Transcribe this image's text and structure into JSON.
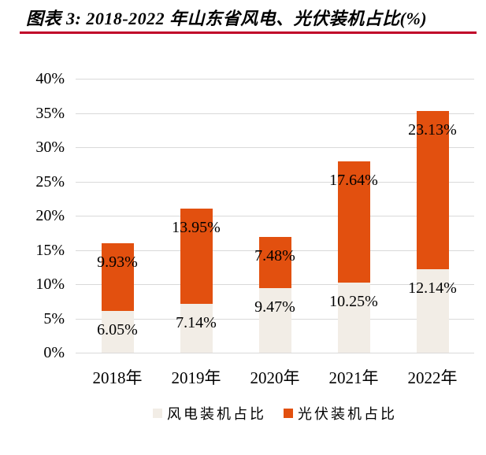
{
  "header": {
    "title": "图表 3: 2018-2022 年山东省风电、光伏装机占比(%)",
    "underline_color": "#C00028"
  },
  "chart_data": {
    "type": "bar",
    "stacked": true,
    "title": "2018-2022 年山东省风电、光伏装机占比(%)",
    "categories": [
      "2018年",
      "2019年",
      "2020年",
      "2021年",
      "2022年"
    ],
    "series": [
      {
        "name": "风电装机占比",
        "color": "#F2EDE6",
        "values": [
          6.05,
          7.14,
          9.47,
          10.25,
          12.14
        ],
        "labels": [
          "6.05%",
          "7.14%",
          "9.47%",
          "10.25%",
          "12.14%"
        ]
      },
      {
        "name": "光伏装机占比",
        "color": "#E2500F",
        "values": [
          9.93,
          13.95,
          7.48,
          17.64,
          23.13
        ],
        "labels": [
          "9.93%",
          "13.95%",
          "7.48%",
          "17.64%",
          "23.13%"
        ]
      }
    ],
    "xlabel": "",
    "ylabel": "",
    "ylim": [
      0,
      40
    ],
    "ytick_step": 5,
    "ytick_labels": [
      "0%",
      "5%",
      "10%",
      "15%",
      "20%",
      "25%",
      "30%",
      "35%",
      "40%"
    ],
    "grid": true,
    "gridline_color": "#D9D9D9",
    "legend_position": "bottom",
    "text_color": "#000000"
  }
}
